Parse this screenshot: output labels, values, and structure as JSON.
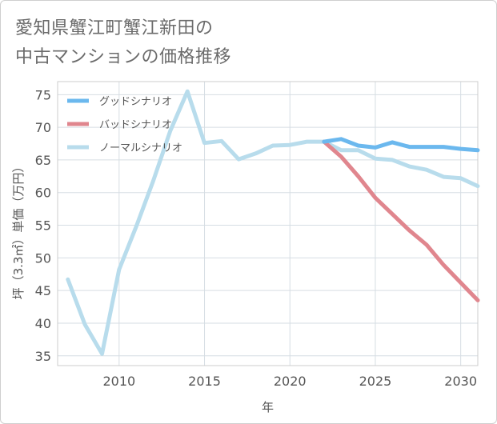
{
  "chart_data": {
    "type": "line",
    "title_lines": [
      "愛知県蟹江町蟹江新田の",
      "中古マンションの価格推移"
    ],
    "xlabel": "年",
    "ylabel": "坪（3.3㎡）単価（万円）",
    "xlim": [
      2006.4,
      2031
    ],
    "ylim": [
      33.5,
      77
    ],
    "x_ticks": [
      2010,
      2015,
      2020,
      2025,
      2030
    ],
    "y_ticks": [
      35,
      40,
      45,
      50,
      55,
      60,
      65,
      70,
      75
    ],
    "grid": true,
    "legend_position": "top-left",
    "series": [
      {
        "name": "グッドシナリオ",
        "color": "#6bb8ee",
        "x": [
          2022,
          2023,
          2024,
          2025,
          2026,
          2027,
          2028,
          2029,
          2030,
          2031
        ],
        "y": [
          67.8,
          68.2,
          67.2,
          66.9,
          67.7,
          67.0,
          67.0,
          67.0,
          66.7,
          66.5
        ]
      },
      {
        "name": "バッドシナリオ",
        "color": "#e0868e",
        "x": [
          2022,
          2023,
          2024,
          2025,
          2026,
          2027,
          2028,
          2029,
          2030,
          2031
        ],
        "y": [
          67.8,
          65.5,
          62.5,
          59.2,
          56.7,
          54.2,
          52.0,
          48.9,
          46.2,
          43.5
        ]
      },
      {
        "name": "ノーマルシナリオ",
        "color": "#b8dcec",
        "x": [
          2007,
          2008,
          2009,
          2010,
          2011,
          2012,
          2013,
          2014,
          2015,
          2016,
          2017,
          2018,
          2019,
          2020,
          2021,
          2022,
          2023,
          2024,
          2025,
          2026,
          2027,
          2028,
          2029,
          2030,
          2031
        ],
        "y": [
          46.7,
          39.8,
          35.3,
          48.2,
          54.8,
          61.8,
          69.5,
          75.5,
          67.6,
          67.9,
          65.1,
          66.0,
          67.2,
          67.3,
          67.8,
          67.8,
          66.5,
          66.5,
          65.2,
          65.0,
          64.0,
          63.5,
          62.4,
          62.2,
          61.0
        ]
      }
    ]
  }
}
